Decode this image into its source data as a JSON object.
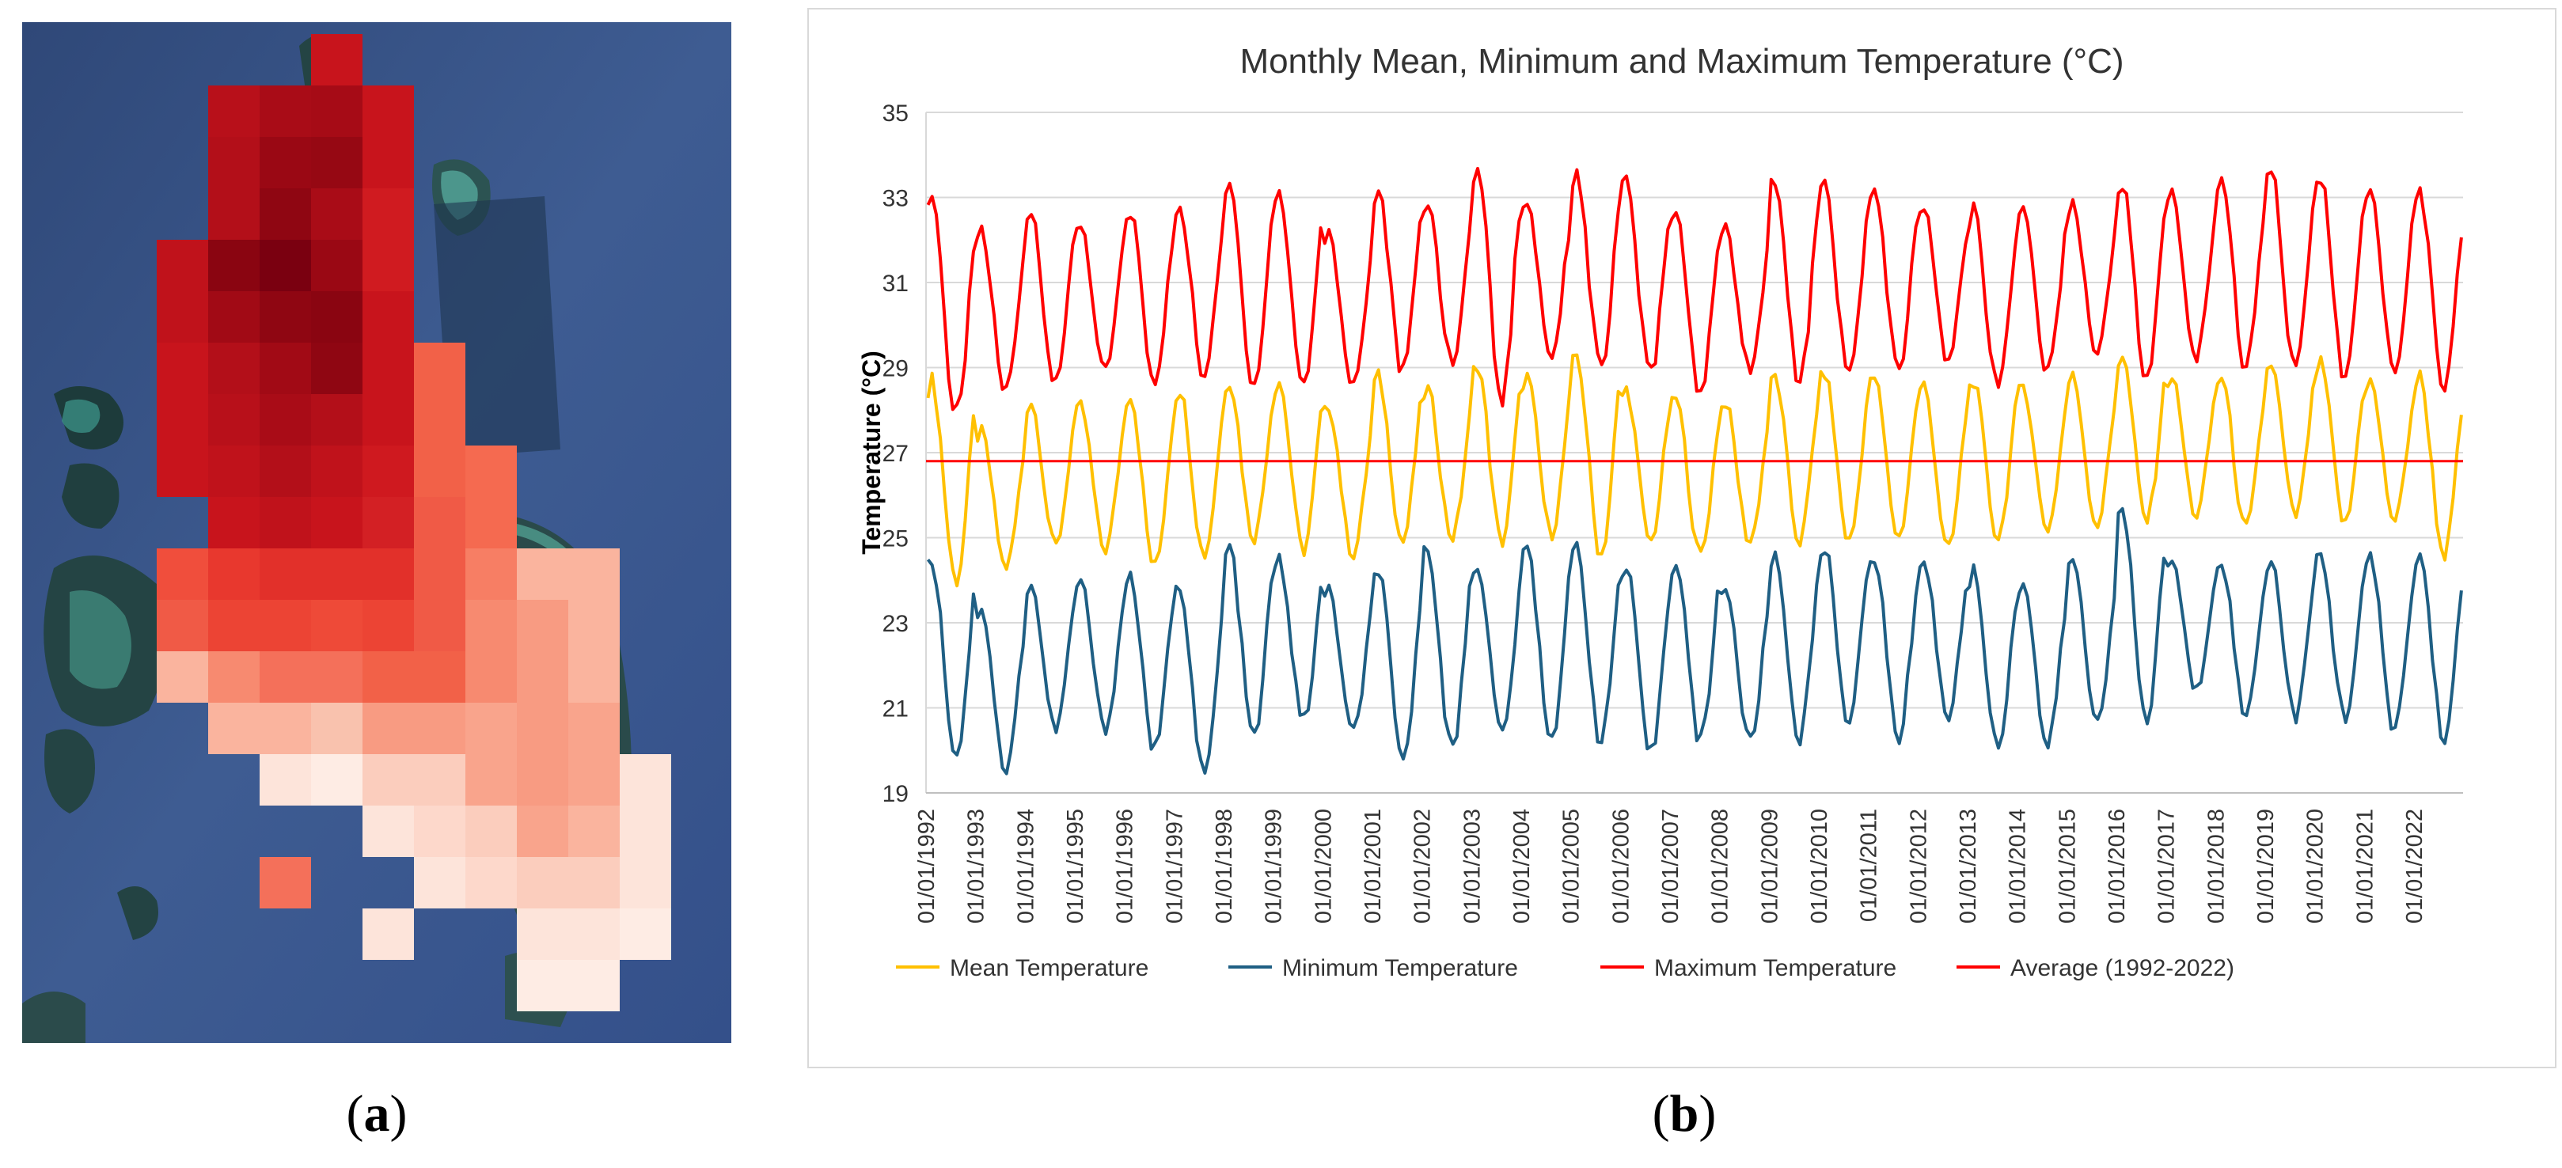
{
  "panel_a": {
    "label_open": "(",
    "label_letter": "a",
    "label_close": ")",
    "legend_colors": {
      "ocean": "#3d5a8e",
      "land": "#2f4f4f",
      "reef": "#4fa39a",
      "heat_darkest": "#7a0010",
      "heat_dark": "#c8141c",
      "heat_mid": "#f05a46",
      "heat_light": "#f7a98f",
      "heat_lightest": "#fde4da"
    }
  },
  "panel_b": {
    "label_open": "(",
    "label_letter": "b",
    "label_close": ")"
  },
  "chart_data": {
    "type": "line",
    "title": "Monthly Mean, Minimum and Maximum Temperature  (°C)",
    "xlabel": "",
    "ylabel": "Temperature (°C)",
    "ylim": [
      19,
      35
    ],
    "yticks": [
      19,
      21,
      23,
      25,
      27,
      29,
      31,
      33,
      35
    ],
    "xrange_years": [
      1992,
      2022.99
    ],
    "xtick_labels": [
      "01/01/1992",
      "01/01/1993",
      "01/01/1994",
      "01/01/1995",
      "01/01/1996",
      "01/01/1997",
      "01/01/1998",
      "01/01/1999",
      "01/01/2000",
      "01/01/2001",
      "01/01/2002",
      "01/01/2003",
      "01/01/2004",
      "01/01/2005",
      "01/01/2006",
      "01/01/2007",
      "01/01/2008",
      "01/01/2009",
      "01/01/2010",
      "01/01/2011",
      "01/01/2012",
      "01/01/2013",
      "01/01/2014",
      "01/01/2015",
      "01/01/2016",
      "01/01/2017",
      "01/01/2018",
      "01/01/2019",
      "01/01/2020",
      "01/01/2021",
      "01/01/2022"
    ],
    "grid": true,
    "legend_position": "bottom",
    "series": [
      {
        "name": "Mean Temperature",
        "color": "#ffc000",
        "annual_peaks": [
          28.7,
          27.5,
          28.2,
          28.1,
          28.4,
          28.5,
          28.7,
          28.7,
          28.1,
          28.8,
          28.5,
          29.1,
          28.8,
          29.3,
          28.5,
          28.3,
          28.2,
          28.8,
          28.9,
          28.8,
          28.6,
          28.7,
          28.6,
          28.8,
          29.3,
          28.8,
          28.8,
          29.1,
          29.1,
          28.7,
          28.8
        ],
        "annual_troughs": [
          24.0,
          24.3,
          24.8,
          24.7,
          24.3,
          24.6,
          25.0,
          24.7,
          24.6,
          24.9,
          25.0,
          24.9,
          25.1,
          24.6,
          24.9,
          24.6,
          24.9,
          24.9,
          24.9,
          25.0,
          24.7,
          25.0,
          25.2,
          25.3,
          25.4,
          25.5,
          25.2,
          25.5,
          25.3,
          25.4,
          24.6
        ]
      },
      {
        "name": "Minimum Temperature",
        "color": "#1f5f84",
        "annual_peaks": [
          24.5,
          23.4,
          23.9,
          24.0,
          24.1,
          23.9,
          24.8,
          24.5,
          23.8,
          24.3,
          24.8,
          24.4,
          24.8,
          24.8,
          24.3,
          24.5,
          23.9,
          24.6,
          24.8,
          24.6,
          24.5,
          24.2,
          24.0,
          24.5,
          25.6,
          24.5,
          24.5,
          24.5,
          24.6,
          24.5,
          24.6
        ],
        "annual_troughs": [
          19.9,
          19.5,
          20.5,
          20.5,
          20.0,
          19.4,
          20.3,
          20.7,
          20.4,
          19.7,
          20.0,
          20.4,
          20.3,
          20.2,
          19.9,
          20.2,
          20.2,
          20.3,
          20.7,
          20.3,
          20.8,
          20.1,
          20.1,
          20.7,
          20.7,
          21.4,
          20.8,
          20.8,
          20.8,
          20.5,
          20.3
        ]
      },
      {
        "name": "Maximum Temperature",
        "color": "#ff0000",
        "annual_peaks": [
          32.9,
          32.2,
          32.7,
          32.4,
          32.7,
          32.8,
          33.3,
          33.1,
          32.2,
          33.2,
          32.9,
          33.8,
          32.9,
          33.6,
          33.4,
          32.6,
          32.3,
          33.5,
          33.3,
          33.2,
          32.8,
          32.7,
          32.8,
          32.9,
          33.4,
          33.1,
          33.5,
          33.8,
          33.5,
          33.1,
          33.2
        ],
        "annual_troughs": [
          27.9,
          28.4,
          28.6,
          28.9,
          28.6,
          28.8,
          28.6,
          28.6,
          28.6,
          28.9,
          29.1,
          28.3,
          29.3,
          29.0,
          28.8,
          28.4,
          29.0,
          28.6,
          28.8,
          28.9,
          29.1,
          28.6,
          28.9,
          29.3,
          28.7,
          29.2,
          29.0,
          28.9,
          28.7,
          29.0,
          28.4
        ]
      },
      {
        "name": "Average (1992-2022)",
        "color": "#ff0000",
        "constant": 26.8
      }
    ]
  }
}
